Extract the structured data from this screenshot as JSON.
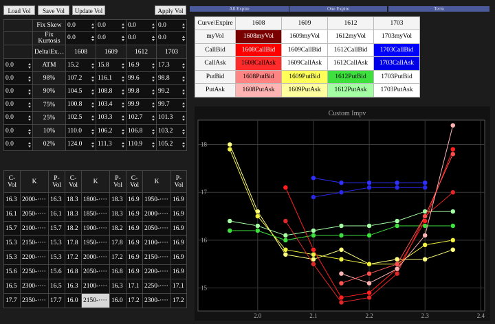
{
  "buttons": [
    "Load Vol",
    "Save Vol",
    "Update Vol",
    "Apply Vol"
  ],
  "tabs": [
    "All Expire",
    "One Expire",
    "Term"
  ],
  "params": {
    "rows": [
      {
        "label": "Fix Skew",
        "values": [
          "0.0",
          "0.0",
          "0.0",
          "0.0"
        ]
      },
      {
        "label": "Fix Kurtosis",
        "values": [
          "0.0",
          "0.0",
          "0.0",
          "0.0"
        ]
      }
    ],
    "header": [
      "Delta\\Ex…",
      "1608",
      "1609",
      "1612",
      "1703"
    ],
    "delta_rows": [
      {
        "input": "0.0",
        "label": "ATM",
        "values": [
          "15.2",
          "15.8",
          "16.9",
          "17.3"
        ]
      },
      {
        "input": "0.0",
        "label": "98%",
        "values": [
          "107.2",
          "116.1",
          "99.6",
          "98.8"
        ]
      },
      {
        "input": "0.0",
        "label": "90%",
        "values": [
          "104.5",
          "108.8",
          "99.8",
          "99.2"
        ]
      },
      {
        "input": "0.0",
        "label": "75%",
        "values": [
          "100.8",
          "103.4",
          "99.9",
          "99.7"
        ]
      },
      {
        "input": "0.0",
        "label": "25%",
        "values": [
          "102.5",
          "103.3",
          "102.7",
          "101.3"
        ]
      },
      {
        "input": "0.0",
        "label": "10%",
        "values": [
          "110.0",
          "106.2",
          "106.8",
          "103.2"
        ]
      },
      {
        "input": "0.0",
        "label": "02%",
        "values": [
          "124.0",
          "111.3",
          "110.9",
          "105.2"
        ]
      }
    ]
  },
  "strikes": {
    "header": [
      "C-Vol",
      "K",
      "P-Vol",
      "C-Vol",
      "K",
      "P-Vol",
      "C-Vol",
      "K",
      "P-Vol"
    ],
    "rows": [
      [
        "16.3",
        "2000-····",
        "16.3",
        "18.3",
        "1800-····",
        "18.3",
        "16.9",
        "1950-····",
        "16.9"
      ],
      [
        "16.1",
        "2050-····",
        "16.1",
        "18.3",
        "1850-····",
        "18.3",
        "16.9",
        "2000-····",
        "16.9"
      ],
      [
        "15.7",
        "2100-····",
        "15.7",
        "18.2",
        "1900-····",
        "18.2",
        "16.9",
        "2050-····",
        "16.9"
      ],
      [
        "15.3",
        "2150-····",
        "15.3",
        "17.8",
        "1950-····",
        "17.8",
        "16.9",
        "2100-····",
        "16.9"
      ],
      [
        "15.3",
        "2200-····",
        "15.3",
        "17.2",
        "2000-····",
        "17.2",
        "16.9",
        "2150-····",
        "16.9"
      ],
      [
        "15.6",
        "2250-····",
        "15.6",
        "16.8",
        "2050-····",
        "16.8",
        "16.9",
        "2200-····",
        "16.9"
      ],
      [
        "16.5",
        "2300-····",
        "16.5",
        "16.3",
        "2100-····",
        "16.3",
        "17.1",
        "2250-····",
        "17.1"
      ],
      [
        "17.7",
        "2350-····",
        "17.7",
        "16.0",
        "2150-····",
        "16.0",
        "17.2",
        "2300-····",
        "17.2"
      ]
    ],
    "selected": [
      7,
      4
    ]
  },
  "curves": {
    "header": [
      "Curve\\Expire",
      "1608",
      "1609",
      "1612",
      "1703"
    ],
    "rows": [
      {
        "label": "myVol",
        "cells": [
          {
            "text": "1608myVol",
            "color": "#7a0000"
          },
          {
            "text": "1609myVol",
            "color": "#ffffff"
          },
          {
            "text": "1612myVol",
            "color": "#ffffff"
          },
          {
            "text": "1703myVol",
            "color": "#ffffff"
          }
        ]
      },
      {
        "label": "CallBid",
        "cells": [
          {
            "text": "1608CallBid",
            "color": "#ff0000"
          },
          {
            "text": "1609CallBid",
            "color": "#ffffff"
          },
          {
            "text": "1612CallBid",
            "color": "#ffffff"
          },
          {
            "text": "1703CallBid",
            "color": "#0000ff"
          }
        ]
      },
      {
        "label": "CallAsk",
        "cells": [
          {
            "text": "1608CallAsk",
            "color": "#ff2a2a"
          },
          {
            "text": "1609CallAsk",
            "color": "#ffffff"
          },
          {
            "text": "1612CallAsk",
            "color": "#ffffff"
          },
          {
            "text": "1703CallAsk",
            "color": "#0000e8"
          }
        ]
      },
      {
        "label": "PutBid",
        "cells": [
          {
            "text": "1608PutBid",
            "color": "#ff8484"
          },
          {
            "text": "1609PutBid",
            "color": "#ffff5a"
          },
          {
            "text": "1612PutBid",
            "color": "#3ee03e"
          },
          {
            "text": "1703PutBid",
            "color": "#ffffff"
          }
        ]
      },
      {
        "label": "PutAsk",
        "cells": [
          {
            "text": "1608PutAsk",
            "color": "#ffb4b4"
          },
          {
            "text": "1609PutAsk",
            "color": "#ffffa0"
          },
          {
            "text": "1612PutAsk",
            "color": "#a4ffa4"
          },
          {
            "text": "1703PutAsk",
            "color": "#ffffff"
          }
        ]
      }
    ]
  },
  "chart_data": {
    "type": "line",
    "title": "Custom Impv",
    "xlim": [
      1.893,
      2.407
    ],
    "ylim": [
      14.52,
      18.51
    ],
    "xticks": [
      {
        "value": 2.0,
        "label": "2.0"
      },
      2.1,
      2.2,
      2.3,
      {
        "value": 2.4,
        "label": "2.4"
      }
    ],
    "yticks": [
      15,
      16,
      17,
      18
    ],
    "grid": true,
    "series": [
      {
        "color": "#ffff80",
        "x": [
          1.95,
          2.0,
          2.05,
          2.1,
          2.15,
          2.2,
          2.25,
          2.3,
          2.35
        ],
        "values": [
          18.0,
          16.6,
          15.7,
          15.6,
          15.8,
          15.5,
          15.6,
          15.6,
          15.8
        ]
      },
      {
        "color": "#f0f040",
        "x": [
          1.95,
          2.0,
          2.05,
          2.1,
          2.15,
          2.2,
          2.25,
          2.3,
          2.35
        ],
        "values": [
          17.9,
          16.5,
          15.8,
          15.7,
          15.6,
          15.5,
          15.5,
          15.9,
          16.0
        ]
      },
      {
        "color": "#a4ffa4",
        "x": [
          1.95,
          2.0,
          2.05,
          2.1,
          2.15,
          2.2,
          2.25,
          2.3,
          2.35
        ],
        "values": [
          16.4,
          16.3,
          16.1,
          16.2,
          16.3,
          16.3,
          16.4,
          16.6,
          16.6
        ]
      },
      {
        "color": "#3ee03e",
        "x": [
          1.95,
          2.0,
          2.05,
          2.1,
          2.15,
          2.2,
          2.25,
          2.3,
          2.35
        ],
        "values": [
          16.2,
          16.2,
          16.0,
          16.1,
          16.1,
          16.1,
          16.3,
          16.3,
          16.3
        ]
      },
      {
        "color": "#3030ff",
        "x": [
          2.1,
          2.15,
          2.2,
          2.25,
          2.3
        ],
        "values": [
          17.3,
          17.2,
          17.2,
          17.2,
          17.2
        ]
      },
      {
        "color": "#2828e8",
        "x": [
          2.1,
          2.15,
          2.2,
          2.25,
          2.3
        ],
        "values": [
          16.9,
          17.0,
          17.1,
          17.1,
          17.1
        ]
      },
      {
        "color": "#ff2020",
        "x": [
          2.05,
          2.1,
          2.15,
          2.2,
          2.25,
          2.3,
          2.35
        ],
        "values": [
          17.1,
          15.8,
          14.8,
          14.9,
          15.4,
          16.4,
          17.9
        ]
      },
      {
        "color": "#e02828",
        "x": [
          2.05,
          2.1,
          2.15,
          2.2,
          2.25,
          2.3,
          2.35
        ],
        "values": [
          16.4,
          15.5,
          14.7,
          14.8,
          15.3,
          16.5,
          17.0
        ]
      },
      {
        "color": "#ffb4b4",
        "x": [
          2.15,
          2.2,
          2.25,
          2.3,
          2.35
        ],
        "values": [
          15.3,
          15.1,
          15.4,
          16.1,
          18.4
        ]
      },
      {
        "color": "#ff5050",
        "x": [
          2.15,
          2.2,
          2.25,
          2.3,
          2.35
        ],
        "values": [
          15.1,
          15.3,
          15.5,
          16.5,
          17.8
        ]
      }
    ]
  }
}
